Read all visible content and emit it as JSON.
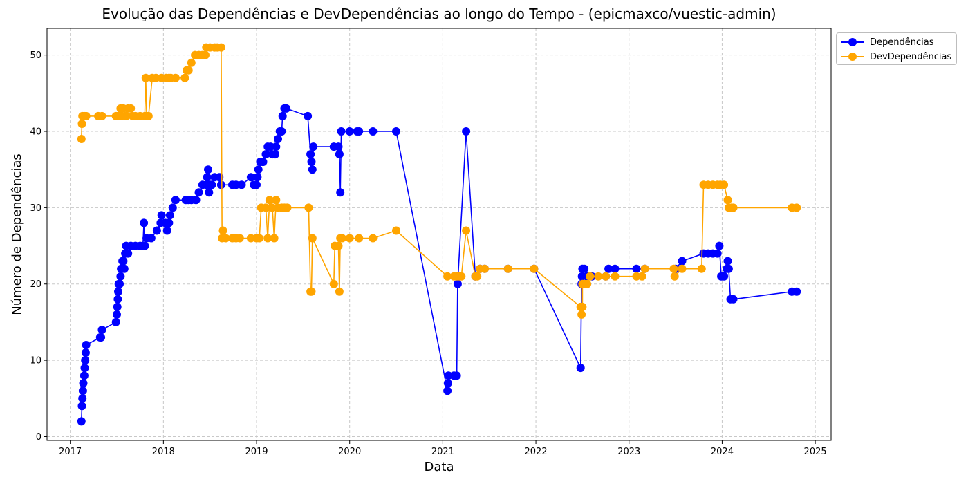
{
  "chart_data": {
    "type": "line",
    "title": "Evolução das Dependências e DevDependências ao longo do Tempo - (epicmaxco/vuestic-admin)",
    "xlabel": "Data",
    "ylabel": "Número de Dependências",
    "xlim": [
      2016.75,
      2025.17
    ],
    "ylim": [
      -0.5,
      53.5
    ],
    "x_ticks": [
      2017,
      2018,
      2019,
      2020,
      2021,
      2022,
      2023,
      2024,
      2025
    ],
    "x_tick_labels": [
      "2017",
      "2018",
      "2019",
      "2020",
      "2021",
      "2022",
      "2023",
      "2024",
      "2025"
    ],
    "y_ticks": [
      0,
      10,
      20,
      30,
      40,
      50
    ],
    "y_tick_labels": [
      "0",
      "10",
      "20",
      "30",
      "40",
      "50"
    ],
    "grid": true,
    "legend_position": "outside-top-right",
    "series": [
      {
        "name": "Dependências",
        "color": "#0000ff",
        "points": [
          [
            2017.12,
            2
          ],
          [
            2017.125,
            4
          ],
          [
            2017.13,
            5
          ],
          [
            2017.135,
            6
          ],
          [
            2017.14,
            7
          ],
          [
            2017.15,
            8
          ],
          [
            2017.155,
            9
          ],
          [
            2017.16,
            10
          ],
          [
            2017.165,
            11
          ],
          [
            2017.17,
            12
          ],
          [
            2017.32,
            13
          ],
          [
            2017.33,
            13
          ],
          [
            2017.34,
            14
          ],
          [
            2017.49,
            15
          ],
          [
            2017.5,
            16
          ],
          [
            2017.505,
            17
          ],
          [
            2017.51,
            18
          ],
          [
            2017.515,
            19
          ],
          [
            2017.52,
            20
          ],
          [
            2017.53,
            20
          ],
          [
            2017.54,
            21
          ],
          [
            2017.545,
            22
          ],
          [
            2017.55,
            22
          ],
          [
            2017.56,
            23
          ],
          [
            2017.57,
            23
          ],
          [
            2017.58,
            22
          ],
          [
            2017.59,
            24
          ],
          [
            2017.6,
            25
          ],
          [
            2017.62,
            24
          ],
          [
            2017.65,
            25
          ],
          [
            2017.7,
            25
          ],
          [
            2017.75,
            25
          ],
          [
            2017.78,
            25
          ],
          [
            2017.79,
            28
          ],
          [
            2017.8,
            25
          ],
          [
            2017.82,
            26
          ],
          [
            2017.87,
            26
          ],
          [
            2017.93,
            27
          ],
          [
            2017.97,
            28
          ],
          [
            2017.98,
            29
          ],
          [
            2018.02,
            28
          ],
          [
            2018.04,
            27
          ],
          [
            2018.06,
            28
          ],
          [
            2018.07,
            29
          ],
          [
            2018.1,
            30
          ],
          [
            2018.13,
            31
          ],
          [
            2018.24,
            31
          ],
          [
            2018.27,
            31
          ],
          [
            2018.3,
            31
          ],
          [
            2018.35,
            31
          ],
          [
            2018.38,
            32
          ],
          [
            2018.42,
            33
          ],
          [
            2018.46,
            33
          ],
          [
            2018.47,
            34
          ],
          [
            2018.48,
            35
          ],
          [
            2018.49,
            32
          ],
          [
            2018.5,
            33
          ],
          [
            2018.52,
            33
          ],
          [
            2018.55,
            34
          ],
          [
            2018.6,
            34
          ],
          [
            2018.62,
            33
          ],
          [
            2018.74,
            33
          ],
          [
            2018.78,
            33
          ],
          [
            2018.84,
            33
          ],
          [
            2018.94,
            34
          ],
          [
            2018.97,
            33
          ],
          [
            2019.0,
            33
          ],
          [
            2019.01,
            34
          ],
          [
            2019.02,
            35
          ],
          [
            2019.04,
            36
          ],
          [
            2019.07,
            36
          ],
          [
            2019.1,
            37
          ],
          [
            2019.12,
            38
          ],
          [
            2019.15,
            38
          ],
          [
            2019.17,
            37
          ],
          [
            2019.2,
            37
          ],
          [
            2019.21,
            38
          ],
          [
            2019.23,
            39
          ],
          [
            2019.25,
            40
          ],
          [
            2019.27,
            40
          ],
          [
            2019.28,
            42
          ],
          [
            2019.3,
            43
          ],
          [
            2019.32,
            43
          ],
          [
            2019.55,
            42
          ],
          [
            2019.58,
            37
          ],
          [
            2019.59,
            36
          ],
          [
            2019.6,
            35
          ],
          [
            2019.61,
            38
          ],
          [
            2019.83,
            38
          ],
          [
            2019.88,
            38
          ],
          [
            2019.89,
            37
          ],
          [
            2019.9,
            32
          ],
          [
            2019.91,
            40
          ],
          [
            2020.0,
            40
          ],
          [
            2020.08,
            40
          ],
          [
            2020.1,
            40
          ],
          [
            2020.25,
            40
          ],
          [
            2020.5,
            40
          ],
          [
            2021.05,
            6
          ],
          [
            2021.055,
            7
          ],
          [
            2021.06,
            8
          ],
          [
            2021.12,
            8
          ],
          [
            2021.15,
            8
          ],
          [
            2021.16,
            20
          ],
          [
            2021.25,
            40
          ],
          [
            2021.35,
            21
          ],
          [
            2021.4,
            22
          ],
          [
            2021.45,
            22
          ],
          [
            2021.7,
            22
          ],
          [
            2021.98,
            22
          ],
          [
            2022.48,
            9
          ],
          [
            2022.49,
            20
          ],
          [
            2022.495,
            21
          ],
          [
            2022.5,
            22
          ],
          [
            2022.52,
            22
          ],
          [
            2022.55,
            21
          ],
          [
            2022.6,
            21
          ],
          [
            2022.75,
            21
          ],
          [
            2022.78,
            22
          ],
          [
            2022.85,
            22
          ],
          [
            2023.08,
            22
          ],
          [
            2023.17,
            22
          ],
          [
            2023.5,
            22
          ],
          [
            2023.57,
            23
          ],
          [
            2023.8,
            24
          ],
          [
            2023.85,
            24
          ],
          [
            2023.9,
            24
          ],
          [
            2023.95,
            24
          ],
          [
            2023.97,
            25
          ],
          [
            2023.99,
            21
          ],
          [
            2024.02,
            21
          ],
          [
            2024.05,
            22
          ],
          [
            2024.06,
            23
          ],
          [
            2024.07,
            22
          ],
          [
            2024.09,
            18
          ],
          [
            2024.12,
            18
          ],
          [
            2024.75,
            19
          ],
          [
            2024.8,
            19
          ]
        ]
      },
      {
        "name": "DevDependências",
        "color": "#ffa500",
        "points": [
          [
            2017.12,
            39
          ],
          [
            2017.125,
            41
          ],
          [
            2017.13,
            42
          ],
          [
            2017.15,
            42
          ],
          [
            2017.17,
            42
          ],
          [
            2017.3,
            42
          ],
          [
            2017.34,
            42
          ],
          [
            2017.49,
            42
          ],
          [
            2017.5,
            42
          ],
          [
            2017.52,
            42
          ],
          [
            2017.54,
            43
          ],
          [
            2017.55,
            42
          ],
          [
            2017.57,
            43
          ],
          [
            2017.6,
            42
          ],
          [
            2017.62,
            43
          ],
          [
            2017.65,
            43
          ],
          [
            2017.67,
            42
          ],
          [
            2017.7,
            42
          ],
          [
            2017.75,
            42
          ],
          [
            2017.8,
            42
          ],
          [
            2017.81,
            47
          ],
          [
            2017.82,
            42
          ],
          [
            2017.84,
            42
          ],
          [
            2017.88,
            47
          ],
          [
            2017.92,
            47
          ],
          [
            2017.98,
            47
          ],
          [
            2018.03,
            47
          ],
          [
            2018.06,
            47
          ],
          [
            2018.08,
            47
          ],
          [
            2018.13,
            47
          ],
          [
            2018.23,
            47
          ],
          [
            2018.25,
            48
          ],
          [
            2018.27,
            48
          ],
          [
            2018.3,
            49
          ],
          [
            2018.34,
            50
          ],
          [
            2018.38,
            50
          ],
          [
            2018.42,
            50
          ],
          [
            2018.45,
            50
          ],
          [
            2018.46,
            51
          ],
          [
            2018.5,
            51
          ],
          [
            2018.55,
            51
          ],
          [
            2018.58,
            51
          ],
          [
            2018.62,
            51
          ],
          [
            2018.63,
            26
          ],
          [
            2018.64,
            27
          ],
          [
            2018.67,
            26
          ],
          [
            2018.74,
            26
          ],
          [
            2018.78,
            26
          ],
          [
            2018.82,
            26
          ],
          [
            2018.94,
            26
          ],
          [
            2019.0,
            26
          ],
          [
            2019.03,
            26
          ],
          [
            2019.05,
            30
          ],
          [
            2019.1,
            30
          ],
          [
            2019.12,
            26
          ],
          [
            2019.14,
            31
          ],
          [
            2019.17,
            30
          ],
          [
            2019.19,
            26
          ],
          [
            2019.21,
            31
          ],
          [
            2019.23,
            30
          ],
          [
            2019.27,
            30
          ],
          [
            2019.3,
            30
          ],
          [
            2019.33,
            30
          ],
          [
            2019.56,
            30
          ],
          [
            2019.58,
            19
          ],
          [
            2019.59,
            19
          ],
          [
            2019.6,
            26
          ],
          [
            2019.83,
            20
          ],
          [
            2019.84,
            25
          ],
          [
            2019.88,
            25
          ],
          [
            2019.89,
            19
          ],
          [
            2019.9,
            26
          ],
          [
            2019.92,
            26
          ],
          [
            2020.0,
            26
          ],
          [
            2020.1,
            26
          ],
          [
            2020.25,
            26
          ],
          [
            2020.5,
            27
          ],
          [
            2021.05,
            21
          ],
          [
            2021.12,
            21
          ],
          [
            2021.15,
            21
          ],
          [
            2021.18,
            21
          ],
          [
            2021.2,
            21
          ],
          [
            2021.25,
            27
          ],
          [
            2021.35,
            21
          ],
          [
            2021.37,
            21
          ],
          [
            2021.4,
            22
          ],
          [
            2021.45,
            22
          ],
          [
            2021.7,
            22
          ],
          [
            2021.98,
            22
          ],
          [
            2022.48,
            17
          ],
          [
            2022.49,
            16
          ],
          [
            2022.5,
            17
          ],
          [
            2022.5,
            20
          ],
          [
            2022.52,
            20
          ],
          [
            2022.55,
            20
          ],
          [
            2022.58,
            21
          ],
          [
            2022.67,
            21
          ],
          [
            2022.75,
            21
          ],
          [
            2022.85,
            21
          ],
          [
            2023.08,
            21
          ],
          [
            2023.14,
            21
          ],
          [
            2023.17,
            22
          ],
          [
            2023.48,
            22
          ],
          [
            2023.49,
            21
          ],
          [
            2023.57,
            22
          ],
          [
            2023.78,
            22
          ],
          [
            2023.8,
            33
          ],
          [
            2023.85,
            33
          ],
          [
            2023.9,
            33
          ],
          [
            2023.95,
            33
          ],
          [
            2023.98,
            33
          ],
          [
            2024.02,
            33
          ],
          [
            2024.06,
            31
          ],
          [
            2024.07,
            30
          ],
          [
            2024.1,
            30
          ],
          [
            2024.12,
            30
          ],
          [
            2024.75,
            30
          ],
          [
            2024.8,
            30
          ]
        ]
      }
    ]
  }
}
